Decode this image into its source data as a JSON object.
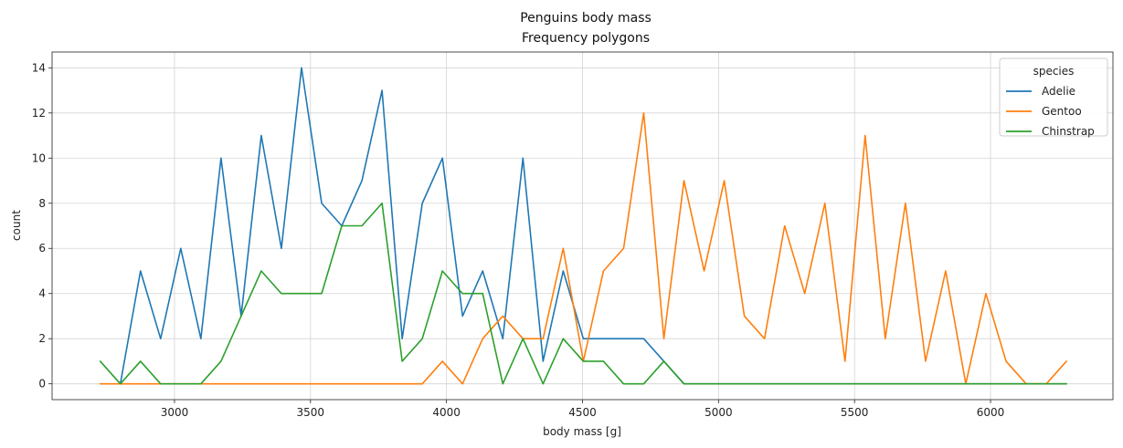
{
  "chart_data": {
    "type": "line",
    "title": "Penguins body mass",
    "subtitle": "Frequency polygons",
    "xlabel": "body mass [g]",
    "ylabel": "count",
    "xlim": [
      2550,
      6450
    ],
    "ylim": [
      -0.7,
      14.7
    ],
    "xticks": [
      3000,
      3500,
      4000,
      4500,
      5000,
      5500,
      6000
    ],
    "yticks": [
      0,
      2,
      4,
      6,
      8,
      10,
      12,
      14
    ],
    "grid": true,
    "legend": {
      "title": "species",
      "placement": "top-right"
    },
    "x": [
      2727,
      2801,
      2875,
      2949,
      3023,
      3097,
      3171,
      3245,
      3319,
      3393,
      3467,
      3541,
      3615,
      3689,
      3763,
      3837,
      3911,
      3985,
      4059,
      4133,
      4207,
      4281,
      4355,
      4429,
      4503,
      4577,
      4651,
      4725,
      4799,
      4873,
      4947,
      5021,
      5095,
      5169,
      5243,
      5317,
      5391,
      5465,
      5539,
      5613,
      5687,
      5761,
      5835,
      5909,
      5983,
      6057,
      6131,
      6205,
      6279
    ],
    "series": [
      {
        "name": "Adelie",
        "color": "#1f77b4",
        "values": [
          null,
          0,
          5,
          2,
          6,
          2,
          10,
          3,
          11,
          6,
          14,
          8,
          7,
          9,
          13,
          2,
          8,
          10,
          3,
          5,
          2,
          10,
          1,
          5,
          2,
          2,
          2,
          2,
          1,
          0,
          0,
          0,
          0,
          0,
          0,
          0,
          0,
          0,
          0,
          0,
          0,
          0,
          0,
          0,
          0,
          0,
          0,
          0,
          0
        ]
      },
      {
        "name": "Gentoo",
        "color": "#ff7f0e",
        "values": [
          0,
          0,
          0,
          0,
          0,
          0,
          0,
          0,
          0,
          0,
          0,
          0,
          0,
          0,
          0,
          0,
          0,
          1,
          0,
          2,
          3,
          2,
          2,
          6,
          1,
          5,
          6,
          12,
          2,
          9,
          5,
          9,
          3,
          2,
          7,
          4,
          8,
          1,
          11,
          2,
          8,
          1,
          5,
          0,
          4,
          1,
          0,
          0,
          1
        ]
      },
      {
        "name": "Chinstrap",
        "color": "#2ca02c",
        "values": [
          1,
          0,
          1,
          0,
          0,
          0,
          1,
          3,
          5,
          4,
          4,
          4,
          7,
          7,
          8,
          1,
          2,
          5,
          4,
          4,
          0,
          2,
          0,
          2,
          1,
          1,
          0,
          0,
          1,
          0,
          0,
          0,
          0,
          0,
          0,
          0,
          0,
          0,
          0,
          0,
          0,
          0,
          0,
          0,
          0,
          0,
          0,
          0,
          0
        ]
      }
    ]
  }
}
